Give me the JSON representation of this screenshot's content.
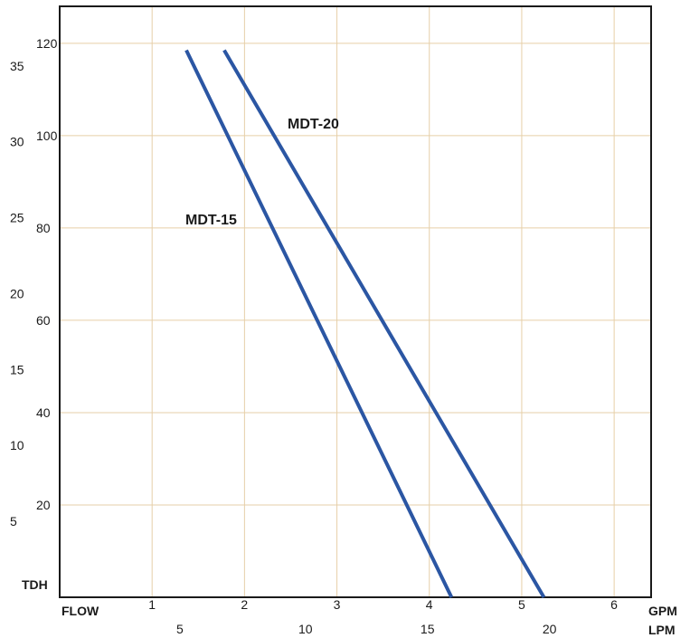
{
  "chart_data": {
    "type": "line",
    "x_label": "FLOW",
    "y_label": "TDH",
    "x_primary": {
      "unit": "GPM",
      "ticks": [
        "1",
        "2",
        "3",
        "4",
        "5",
        "6"
      ],
      "range": [
        0,
        6.4
      ]
    },
    "x_secondary": {
      "unit": "LPM",
      "ticks": [
        "5",
        "10",
        "15",
        "20"
      ]
    },
    "y_primary": {
      "ticks": [
        "20",
        "40",
        "60",
        "80",
        "100",
        "120"
      ],
      "range": [
        0,
        128
      ]
    },
    "y_secondary": {
      "ticks": [
        "5",
        "10",
        "15",
        "20",
        "25",
        "30",
        "35"
      ]
    },
    "grid": true,
    "series": [
      {
        "name": "MDT-15",
        "x": [
          1.37,
          4.24
        ],
        "y": [
          118.5,
          0
        ]
      },
      {
        "name": "MDT-20",
        "x": [
          1.78,
          5.24
        ],
        "y": [
          118.5,
          0
        ]
      }
    ],
    "colors": {
      "line": "#2b56a3",
      "grid": "#e6cfa8",
      "frame": "#1a1a1a"
    }
  }
}
